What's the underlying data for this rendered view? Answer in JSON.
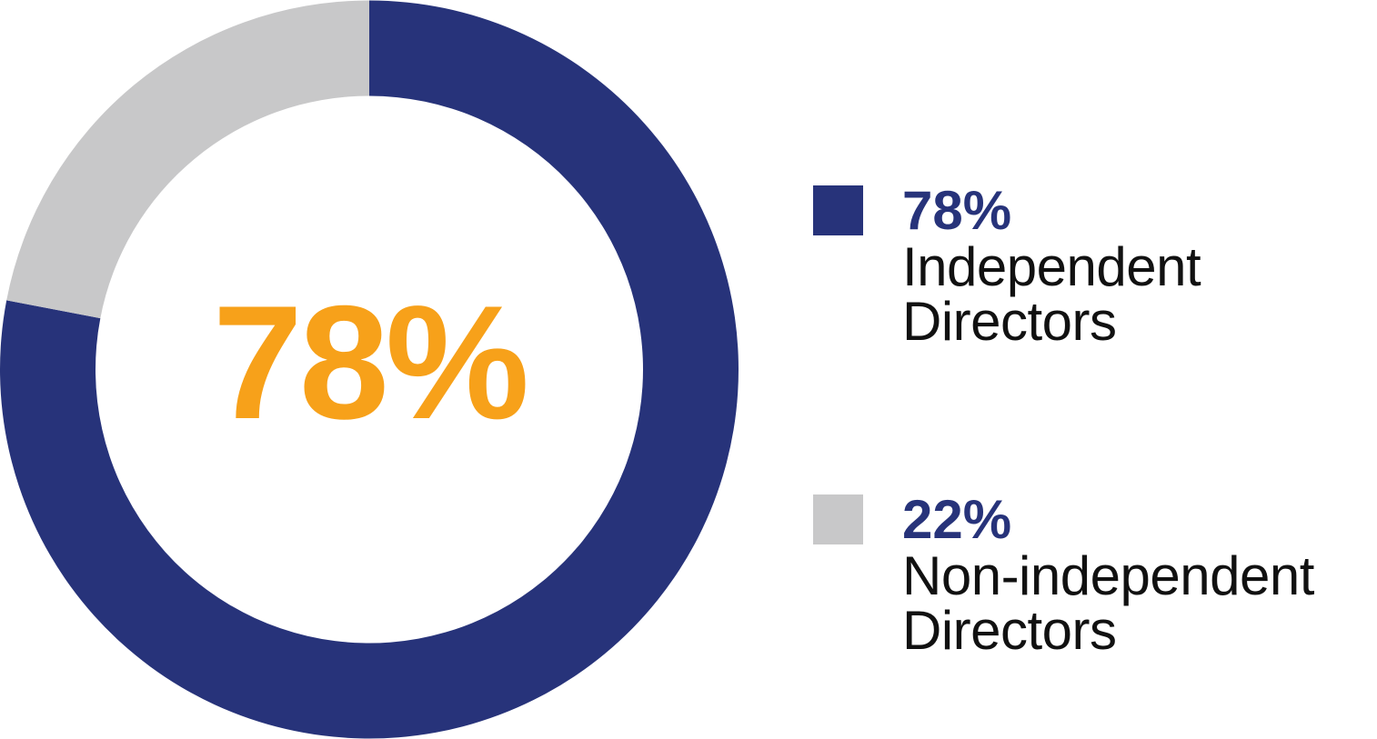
{
  "chart_data": {
    "type": "pie",
    "donut": true,
    "center_label": "78%",
    "categories": [
      "Independent Directors",
      "Non-independent Directors"
    ],
    "values": [
      78,
      22
    ],
    "colors": [
      "#27337a",
      "#c8c8c9"
    ],
    "value_labels": [
      "78%",
      "22%"
    ],
    "legend": [
      {
        "value": "78%",
        "line1": "Independent",
        "line2": "Directors",
        "color": "#27337a"
      },
      {
        "value": "22%",
        "line1": "Non-independent",
        "line2": "Directors",
        "color": "#c8c8c9"
      }
    ],
    "legend_position": "right",
    "start_angle": "12 o'clock",
    "direction": "clockwise"
  },
  "colors": {
    "center_label": "#f7a11a",
    "legend_value": "#27337a",
    "legend_text": "#111111",
    "background": "#ffffff"
  }
}
